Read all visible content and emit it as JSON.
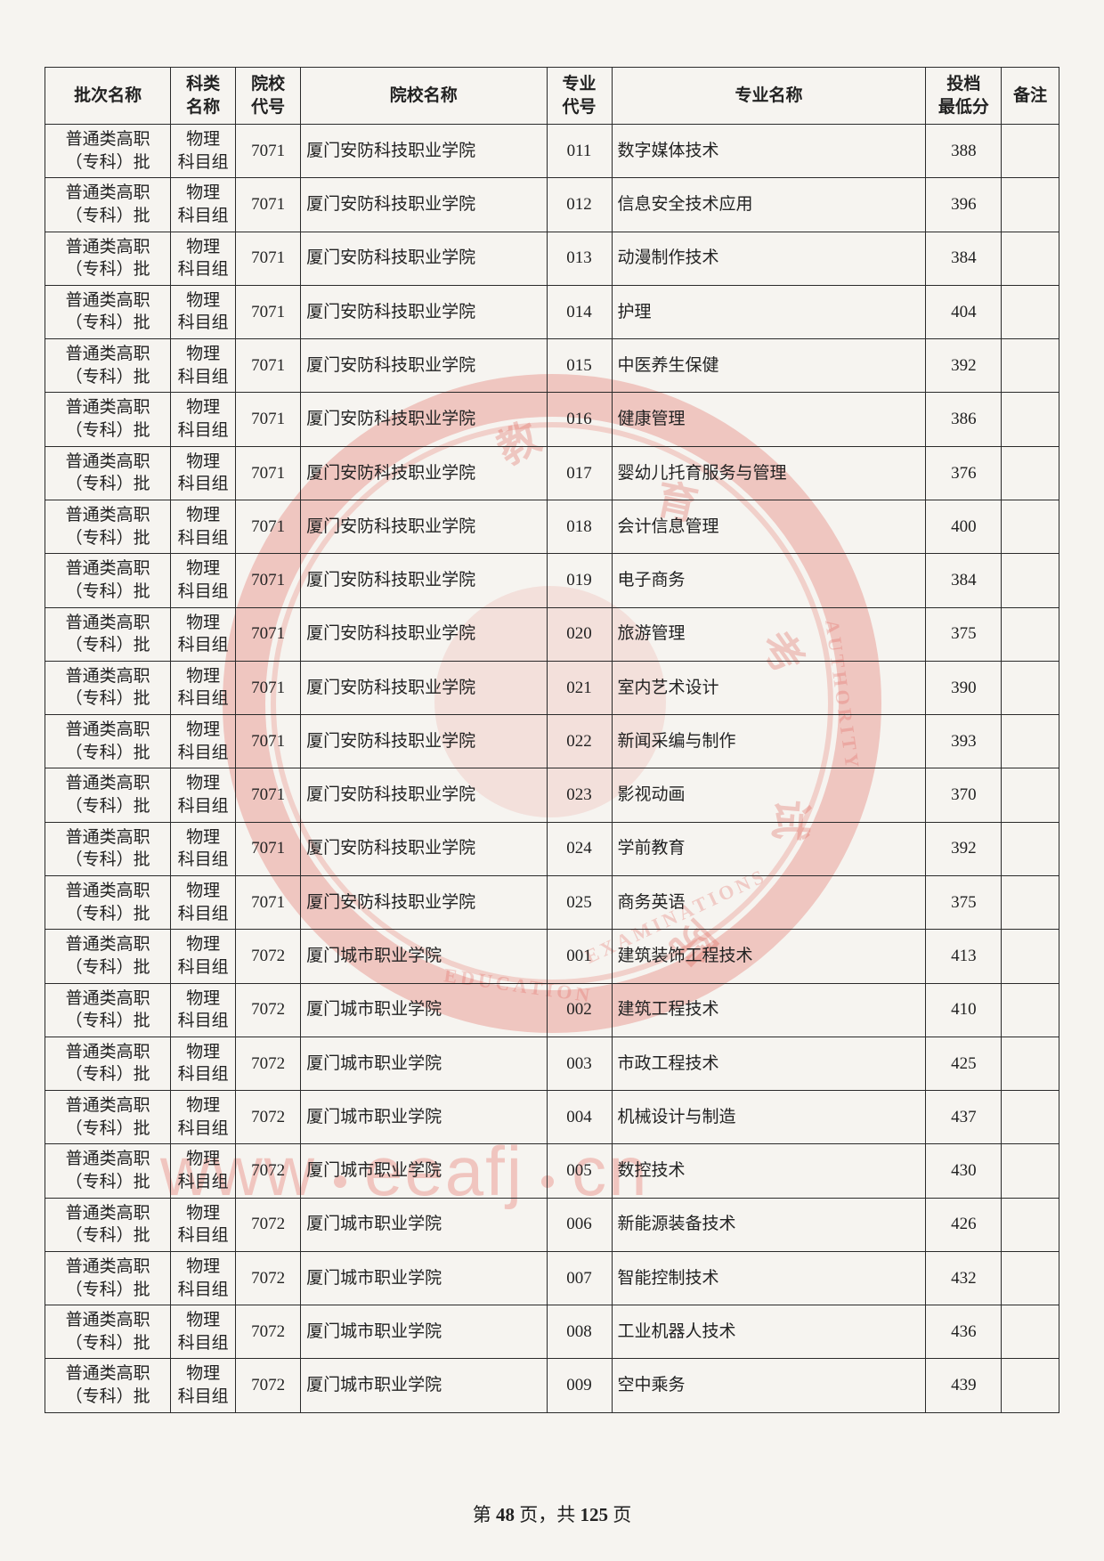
{
  "table": {
    "columns": [
      {
        "key": "batch",
        "label": "批次名称",
        "class": "col-batch"
      },
      {
        "key": "subject",
        "label": "科类\n名称",
        "class": "col-subj"
      },
      {
        "key": "schoolCode",
        "label": "院校\n代号",
        "class": "col-scode"
      },
      {
        "key": "schoolName",
        "label": "院校名称",
        "class": "col-sname"
      },
      {
        "key": "majorCode",
        "label": "专业\n代号",
        "class": "col-mcode"
      },
      {
        "key": "majorName",
        "label": "专业名称",
        "class": "col-mname"
      },
      {
        "key": "score",
        "label": "投档\n最低分",
        "class": "col-score"
      },
      {
        "key": "note",
        "label": "备注",
        "class": "col-note"
      }
    ],
    "batch_label": "普通类高职\n（专科）批",
    "subject_label": "物理\n科目组",
    "rows": [
      {
        "schoolCode": "7071",
        "schoolName": "厦门安防科技职业学院",
        "majorCode": "011",
        "majorName": "数字媒体技术",
        "score": "388",
        "note": ""
      },
      {
        "schoolCode": "7071",
        "schoolName": "厦门安防科技职业学院",
        "majorCode": "012",
        "majorName": "信息安全技术应用",
        "score": "396",
        "note": ""
      },
      {
        "schoolCode": "7071",
        "schoolName": "厦门安防科技职业学院",
        "majorCode": "013",
        "majorName": "动漫制作技术",
        "score": "384",
        "note": ""
      },
      {
        "schoolCode": "7071",
        "schoolName": "厦门安防科技职业学院",
        "majorCode": "014",
        "majorName": "护理",
        "score": "404",
        "note": ""
      },
      {
        "schoolCode": "7071",
        "schoolName": "厦门安防科技职业学院",
        "majorCode": "015",
        "majorName": "中医养生保健",
        "score": "392",
        "note": ""
      },
      {
        "schoolCode": "7071",
        "schoolName": "厦门安防科技职业学院",
        "majorCode": "016",
        "majorName": "健康管理",
        "score": "386",
        "note": ""
      },
      {
        "schoolCode": "7071",
        "schoolName": "厦门安防科技职业学院",
        "majorCode": "017",
        "majorName": "婴幼儿托育服务与管理",
        "score": "376",
        "note": ""
      },
      {
        "schoolCode": "7071",
        "schoolName": "厦门安防科技职业学院",
        "majorCode": "018",
        "majorName": "会计信息管理",
        "score": "400",
        "note": ""
      },
      {
        "schoolCode": "7071",
        "schoolName": "厦门安防科技职业学院",
        "majorCode": "019",
        "majorName": "电子商务",
        "score": "384",
        "note": ""
      },
      {
        "schoolCode": "7071",
        "schoolName": "厦门安防科技职业学院",
        "majorCode": "020",
        "majorName": "旅游管理",
        "score": "375",
        "note": ""
      },
      {
        "schoolCode": "7071",
        "schoolName": "厦门安防科技职业学院",
        "majorCode": "021",
        "majorName": "室内艺术设计",
        "score": "390",
        "note": ""
      },
      {
        "schoolCode": "7071",
        "schoolName": "厦门安防科技职业学院",
        "majorCode": "022",
        "majorName": "新闻采编与制作",
        "score": "393",
        "note": ""
      },
      {
        "schoolCode": "7071",
        "schoolName": "厦门安防科技职业学院",
        "majorCode": "023",
        "majorName": "影视动画",
        "score": "370",
        "note": ""
      },
      {
        "schoolCode": "7071",
        "schoolName": "厦门安防科技职业学院",
        "majorCode": "024",
        "majorName": "学前教育",
        "score": "392",
        "note": ""
      },
      {
        "schoolCode": "7071",
        "schoolName": "厦门安防科技职业学院",
        "majorCode": "025",
        "majorName": "商务英语",
        "score": "375",
        "note": ""
      },
      {
        "schoolCode": "7072",
        "schoolName": "厦门城市职业学院",
        "majorCode": "001",
        "majorName": "建筑装饰工程技术",
        "score": "413",
        "note": ""
      },
      {
        "schoolCode": "7072",
        "schoolName": "厦门城市职业学院",
        "majorCode": "002",
        "majorName": "建筑工程技术",
        "score": "410",
        "note": ""
      },
      {
        "schoolCode": "7072",
        "schoolName": "厦门城市职业学院",
        "majorCode": "003",
        "majorName": "市政工程技术",
        "score": "425",
        "note": ""
      },
      {
        "schoolCode": "7072",
        "schoolName": "厦门城市职业学院",
        "majorCode": "004",
        "majorName": "机械设计与制造",
        "score": "437",
        "note": ""
      },
      {
        "schoolCode": "7072",
        "schoolName": "厦门城市职业学院",
        "majorCode": "005",
        "majorName": "数控技术",
        "score": "430",
        "note": ""
      },
      {
        "schoolCode": "7072",
        "schoolName": "厦门城市职业学院",
        "majorCode": "006",
        "majorName": "新能源装备技术",
        "score": "426",
        "note": ""
      },
      {
        "schoolCode": "7072",
        "schoolName": "厦门城市职业学院",
        "majorCode": "007",
        "majorName": "智能控制技术",
        "score": "432",
        "note": ""
      },
      {
        "schoolCode": "7072",
        "schoolName": "厦门城市职业学院",
        "majorCode": "008",
        "majorName": "工业机器人技术",
        "score": "436",
        "note": ""
      },
      {
        "schoolCode": "7072",
        "schoolName": "厦门城市职业学院",
        "majorCode": "009",
        "majorName": "空中乘务",
        "score": "439",
        "note": ""
      }
    ]
  },
  "footer": {
    "prefix": "第 ",
    "page": "48",
    "mid": " 页，共 ",
    "total": "125",
    "suffix": " 页"
  },
  "watermark": {
    "text_parts": [
      "www",
      "eeafj",
      "cn"
    ]
  },
  "seal": {
    "cn_chars": [
      "教",
      "育",
      "考",
      "试",
      "院"
    ],
    "en_top": "EDUCATION",
    "en_right": "AUTHORITY",
    "en_bottom": "EXAMINATIONS"
  },
  "style": {
    "page_bg": "#f6f4f0",
    "border_color": "#2a2a2a",
    "text_color": "#222222",
    "seal_color": "rgba(222,80,70,0.28)",
    "watermark_color": "rgba(230,110,100,0.35)",
    "font_size_cell": 19,
    "font_size_footer": 21,
    "font_size_watermark": 78
  }
}
